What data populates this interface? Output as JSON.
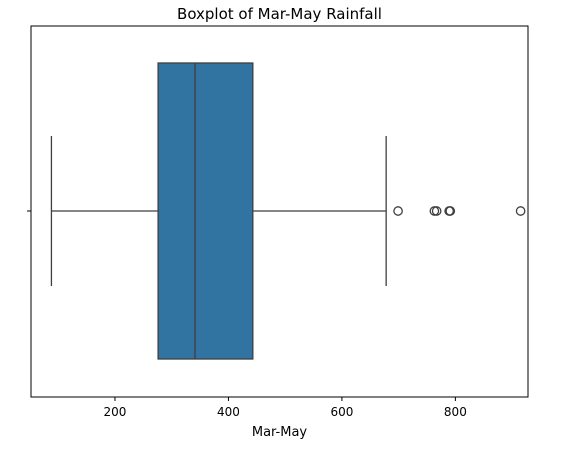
{
  "chart_data": {
    "type": "boxplot",
    "title": "Boxplot of Mar-May Rainfall",
    "xlabel": "Mar-May",
    "ylabel": "",
    "orientation": "horizontal",
    "xlim": [
      52,
      928
    ],
    "xticks": [
      200,
      400,
      600,
      800
    ],
    "grid": false,
    "legend": "none",
    "box": {
      "whisker_low": 88,
      "q1": 276,
      "median": 341,
      "q3": 443,
      "whisker_high": 678
    },
    "outliers": [
      699,
      763,
      767,
      789,
      791,
      915
    ],
    "colors": {
      "box_fill": "#3274a1",
      "box_edge": "#3f3f3f",
      "axes": "#000000",
      "outlier_edge": "#3f3f3f"
    }
  }
}
